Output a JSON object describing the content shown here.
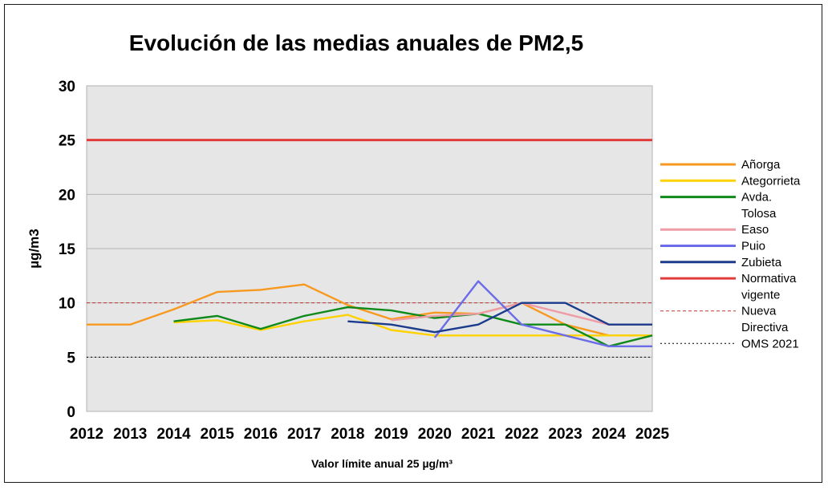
{
  "chart_data": {
    "type": "line",
    "title": "Evolución de las medias anuales de PM2,5",
    "xlabel": "Valor límite anual 25 µg/m³",
    "ylabel": "µg/m3",
    "ylim": [
      0,
      30
    ],
    "yticks": [
      0,
      5,
      10,
      15,
      20,
      25,
      30
    ],
    "x": [
      "2012",
      "2013",
      "2014",
      "2015",
      "2016",
      "2017",
      "2018",
      "2019",
      "2020",
      "2021",
      "2022",
      "2023",
      "2024",
      "2025"
    ],
    "grid": true,
    "legend_position": "right",
    "series": [
      {
        "name": "Añorga",
        "color": "#f7991f",
        "values": [
          8,
          8,
          9.4,
          11,
          11.2,
          11.7,
          9.8,
          8.5,
          9.1,
          9,
          10,
          8,
          7,
          7
        ]
      },
      {
        "name": "Ategorrieta",
        "color": "#fed200",
        "values": [
          null,
          null,
          8.2,
          8.4,
          7.5,
          8.3,
          8.9,
          7.5,
          7,
          7,
          7,
          7,
          7,
          7
        ]
      },
      {
        "name": "Avda. Tolosa",
        "color": "#0f8a1a",
        "values": [
          null,
          null,
          8.3,
          8.8,
          7.6,
          8.8,
          9.6,
          9.3,
          8.6,
          9,
          8,
          8,
          6,
          7
        ]
      },
      {
        "name": "Easo",
        "color": "#ee9ca6",
        "values": [
          null,
          null,
          null,
          null,
          null,
          null,
          null,
          8.4,
          8.8,
          9,
          10,
          9,
          8,
          8
        ]
      },
      {
        "name": "Puio",
        "color": "#6a6ce8",
        "values": [
          null,
          null,
          null,
          null,
          null,
          null,
          null,
          null,
          6.8,
          12,
          8,
          7,
          6,
          6
        ]
      },
      {
        "name": "Zubieta",
        "color": "#1b3c8c",
        "values": [
          null,
          null,
          null,
          null,
          null,
          null,
          8.3,
          8,
          7.3,
          8,
          10,
          10,
          8,
          8
        ]
      }
    ],
    "reference_lines": [
      {
        "name": "Normativa vigente",
        "value": 25,
        "color": "#e23b3b",
        "style": "solid"
      },
      {
        "name": "Nueva Directiva",
        "value": 10,
        "color": "#c0352b",
        "style": "dashed"
      },
      {
        "name": "OMS 2021",
        "value": 5,
        "color": "#000000",
        "style": "dotted"
      }
    ]
  }
}
